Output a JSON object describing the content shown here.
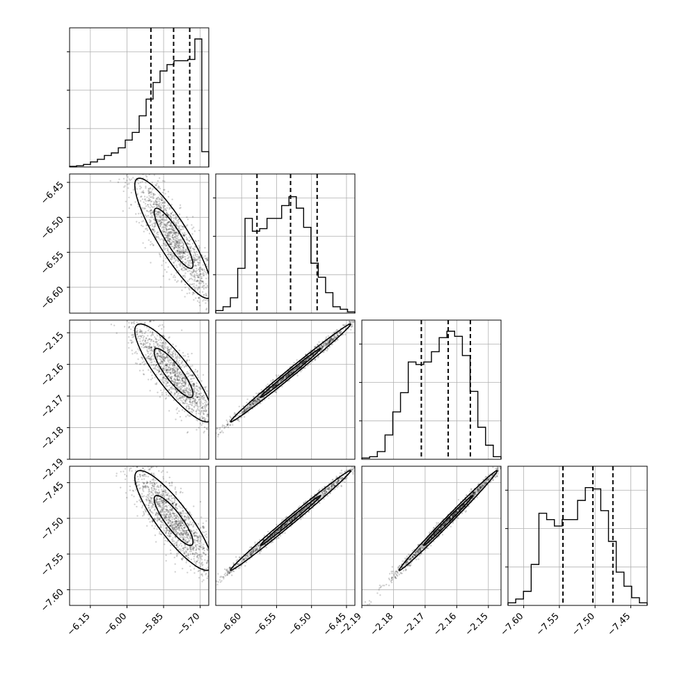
{
  "chart_data": {
    "type": "corner",
    "parameters": [
      {
        "ticks": [
          -6.15,
          -6.0,
          -5.85,
          -5.7
        ],
        "tick_labels": [
          "−6.15",
          "−6.00",
          "−5.85",
          "−5.70"
        ],
        "range": [
          -6.235,
          -5.665
        ],
        "quantiles": [
          -5.902,
          -5.809,
          -5.743
        ]
      },
      {
        "ticks": [
          -6.45,
          -6.5,
          -6.55,
          -6.6
        ],
        "tick_labels": [
          "−6.45",
          "−6.50",
          "−6.55",
          "−6.60"
        ],
        "range": [
          -6.637,
          -6.438
        ],
        "quantiles": [
          -6.578,
          -6.53,
          -6.492
        ]
      },
      {
        "ticks": [
          -2.15,
          -2.16,
          -2.17,
          -2.18,
          -2.19
        ],
        "tick_labels": [
          "−2.15",
          "−2.16",
          "−2.17",
          "−2.18",
          "−2.19"
        ],
        "range": [
          -2.19,
          -2.146
        ],
        "quantiles": [
          -2.1712,
          -2.1627,
          -2.1557
        ]
      },
      {
        "ticks": [
          -7.45,
          -7.5,
          -7.55,
          -7.6
        ],
        "tick_labels": [
          "−7.45",
          "−7.50",
          "−7.55",
          "−7.60"
        ],
        "range": [
          -7.622,
          -7.427
        ],
        "quantiles": [
          -7.545,
          -7.503,
          -7.475
        ]
      }
    ],
    "histograms": [
      [
        0.005,
        0.01,
        0.02,
        0.04,
        0.06,
        0.09,
        0.11,
        0.15,
        0.21,
        0.27,
        0.4,
        0.53,
        0.66,
        0.75,
        0.8,
        0.83,
        0.83,
        0.84,
        1.0,
        0.12
      ],
      [
        0.02,
        0.05,
        0.12,
        0.35,
        0.74,
        0.64,
        0.66,
        0.74,
        0.74,
        0.84,
        0.91,
        0.82,
        0.67,
        0.39,
        0.28,
        0.16,
        0.05,
        0.03,
        0.01
      ],
      [
        0.01,
        0.02,
        0.06,
        0.19,
        0.37,
        0.52,
        0.76,
        0.74,
        0.76,
        0.84,
        0.95,
        1.0,
        0.96,
        0.81,
        0.53,
        0.25,
        0.11,
        0.02
      ],
      [
        0.02,
        0.05,
        0.11,
        0.32,
        0.72,
        0.67,
        0.62,
        0.67,
        0.67,
        0.82,
        0.92,
        0.91,
        0.74,
        0.5,
        0.26,
        0.15,
        0.06,
        0.02
      ]
    ],
    "pairs": [
      {
        "x_param": 0,
        "y_param": 1,
        "correlation": -0.88,
        "curvature": 0.0,
        "contour_scale": 1.0
      },
      {
        "x_param": 0,
        "y_param": 2,
        "correlation": -0.86,
        "curvature": 0.0,
        "contour_scale": 1.0
      },
      {
        "x_param": 1,
        "y_param": 2,
        "correlation": 0.995,
        "curvature": 0.0,
        "contour_scale": 1.0
      },
      {
        "x_param": 0,
        "y_param": 3,
        "correlation": -0.86,
        "curvature": 0.0,
        "contour_scale": 1.0
      },
      {
        "x_param": 1,
        "y_param": 3,
        "correlation": 0.995,
        "curvature": 0.0,
        "contour_scale": 1.0
      },
      {
        "x_param": 2,
        "y_param": 3,
        "correlation": 0.995,
        "curvature": 0.0,
        "contour_scale": 1.0
      }
    ],
    "grid": true,
    "quantile_levels": [
      0.16,
      0.5,
      0.84
    ]
  }
}
